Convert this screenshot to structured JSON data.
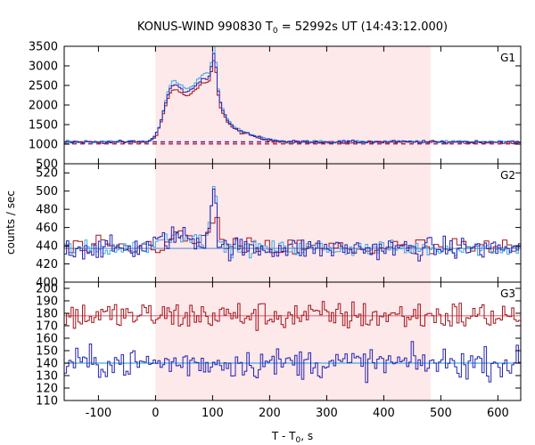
{
  "chart_data": {
    "type": "line",
    "title": "KONUS-WIND 990830 T",
    "title_sub": "0",
    "title_rest": " = 52992s UT (14:43:12.000)",
    "xlabel": "T - T",
    "xlabel_sub": "0",
    "xlabel_rest": ", s",
    "ylabel": "counts / sec",
    "xlim": [
      -160,
      640
    ],
    "x_ticks": [
      -100,
      0,
      100,
      200,
      300,
      400,
      500,
      600
    ],
    "x_tick_labels": [
      "-100",
      "0",
      "100",
      "200",
      "300",
      "400",
      "500",
      "600"
    ],
    "shaded_interval": [
      0,
      482
    ],
    "colors": {
      "shade": "#fde8ea",
      "dark_red": "#a3151d",
      "red_dashed": "#c81e2b",
      "dark_blue": "#2424b0",
      "light_blue": "#3fa9e6",
      "background_fit": "#6e9bd6",
      "red_fit": "#e06f7a"
    },
    "panels": [
      {
        "name": "G1",
        "ylim": [
          500,
          3500
        ],
        "y_ticks": [
          500,
          1000,
          1500,
          2000,
          2500,
          3000,
          3500
        ],
        "y_tick_labels": [
          "500",
          "1000",
          "1500",
          "2000",
          "2500",
          "3000",
          "3500"
        ],
        "background_level": 1060,
        "background_level_2": 1010,
        "base": 1060,
        "noise": 18,
        "peaks": [
          {
            "center": 25,
            "width": 14,
            "amp": 1050
          },
          {
            "center": 50,
            "width": 18,
            "amp": 800
          },
          {
            "center": 88,
            "width": 20,
            "amp": 1350
          },
          {
            "center": 101,
            "width": 4,
            "amp": 900
          },
          {
            "center": 125,
            "width": 40,
            "amp": 300
          }
        ]
      },
      {
        "name": "G2",
        "ylim": [
          400,
          530
        ],
        "y_ticks": [
          400,
          420,
          440,
          460,
          480,
          500,
          520
        ],
        "y_tick_labels": [
          "400",
          "420",
          "440",
          "460",
          "480",
          "500",
          "520"
        ],
        "background_level": 437,
        "base": 437,
        "noise": 6,
        "peaks": [
          {
            "center": 40,
            "width": 30,
            "amp": 14
          },
          {
            "center": 96,
            "width": 5,
            "amp": 40
          },
          {
            "center": 102,
            "width": 2.5,
            "amp": 55
          }
        ]
      },
      {
        "name": "G3",
        "ylim": [
          110,
          205
        ],
        "y_ticks": [
          110,
          120,
          130,
          140,
          150,
          160,
          170,
          180,
          190,
          200
        ],
        "y_tick_labels": [
          "110",
          "120",
          "130",
          "140",
          "150",
          "160",
          "170",
          "180",
          "190",
          "200"
        ],
        "series_levels": [
          178,
          140
        ],
        "noise": 6
      }
    ]
  }
}
